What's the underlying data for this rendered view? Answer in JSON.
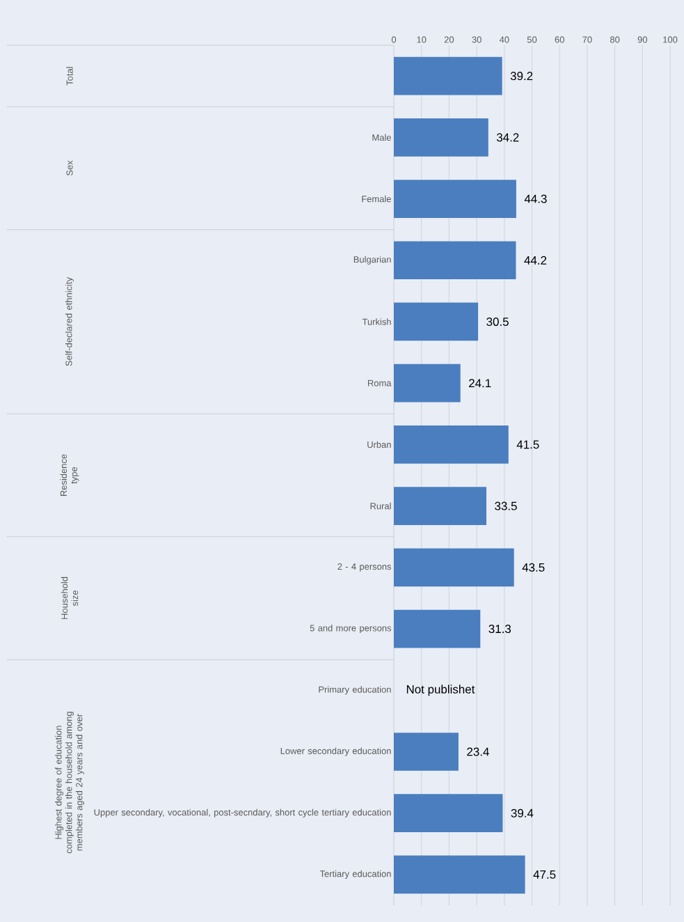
{
  "chart_data": {
    "type": "bar",
    "orientation": "horizontal",
    "categories": [
      null,
      "Male",
      "Female",
      "Bulgarian",
      "Turkish",
      "Roma",
      "Urban",
      "Rural",
      "2 - 4 persons",
      "5 and more persons",
      "Primary education",
      "Lower secondary education",
      "Upper secondary, vocational, post-secndary, short cycle tertiary education",
      "Tertiary education"
    ],
    "values": [
      39.2,
      34.2,
      44.3,
      44.2,
      30.5,
      24.1,
      41.5,
      33.5,
      43.5,
      31.3,
      null,
      23.4,
      39.4,
      47.5
    ],
    "color": "#4a7ebf",
    "data_labels": true,
    "grid": "x",
    "xlim": [
      0,
      100
    ],
    "xticks": [
      0,
      10,
      20,
      30,
      40,
      50,
      60,
      70,
      80,
      90,
      100
    ],
    "annotations": [
      "Total",
      "Sex",
      "Self-declared ethnicity",
      "Residence type",
      "Household size",
      "Highest degree of education completed in the household among members aged 24 years and over",
      "Not publishet"
    ]
  }
}
